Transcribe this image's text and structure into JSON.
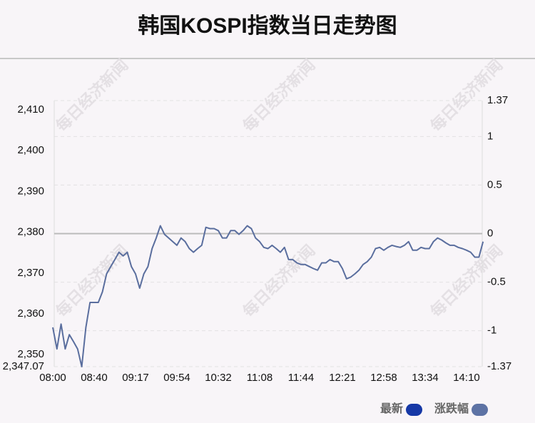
{
  "chart_data": {
    "type": "line",
    "title": "韩国KOSPI指数当日走势图",
    "watermark": "每日经济新闻",
    "categories": [
      "08:00",
      null,
      null,
      null,
      null,
      null,
      null,
      null,
      null,
      null,
      "08:40",
      null,
      null,
      null,
      null,
      null,
      null,
      null,
      null,
      null,
      "09:17",
      null,
      null,
      null,
      null,
      null,
      null,
      null,
      null,
      null,
      "09:54",
      null,
      null,
      null,
      null,
      null,
      null,
      null,
      null,
      null,
      "10:32",
      null,
      null,
      null,
      null,
      null,
      null,
      null,
      null,
      null,
      "11:08",
      null,
      null,
      null,
      null,
      null,
      null,
      null,
      null,
      null,
      "11:44",
      null,
      null,
      null,
      null,
      null,
      null,
      null,
      null,
      null,
      "12:21",
      null,
      null,
      null,
      null,
      null,
      null,
      null,
      null,
      null,
      "12:58",
      null,
      null,
      null,
      null,
      null,
      null,
      null,
      null,
      null,
      "13:34",
      null,
      null,
      null,
      null,
      null,
      null,
      null,
      null,
      null,
      "14:10",
      null,
      null,
      null,
      null
    ],
    "values": [
      2356.7,
      2351.4,
      2357.5,
      2351.4,
      2354.9,
      2353.2,
      2351.4,
      2347.07,
      2356.7,
      2362.8,
      2362.8,
      2362.8,
      2365.4,
      2369.8,
      2371.6,
      2373.3,
      2375.1,
      2374.2,
      2375.1,
      2371.6,
      2369.8,
      2366.3,
      2369.8,
      2371.6,
      2376.0,
      2378.6,
      2381.6,
      2379.5,
      2378.6,
      2377.7,
      2376.8,
      2378.6,
      2377.7,
      2376.0,
      2375.1,
      2376.0,
      2376.8,
      2381.2,
      2380.9,
      2380.9,
      2380.4,
      2378.6,
      2378.6,
      2380.4,
      2380.4,
      2379.5,
      2380.4,
      2381.6,
      2380.9,
      2378.6,
      2377.7,
      2376.3,
      2376.0,
      2376.8,
      2376.0,
      2375.1,
      2376.3,
      2373.3,
      2373.3,
      2372.5,
      2372.1,
      2372.1,
      2371.6,
      2371.1,
      2370.7,
      2372.5,
      2372.5,
      2373.3,
      2372.8,
      2372.8,
      2371.1,
      2368.6,
      2369.0,
      2369.8,
      2370.7,
      2372.1,
      2372.8,
      2373.9,
      2376.0,
      2376.3,
      2375.6,
      2376.3,
      2376.8,
      2376.5,
      2376.3,
      2376.8,
      2377.7,
      2375.6,
      2375.6,
      2376.3,
      2376.0,
      2376.0,
      2377.7,
      2378.6,
      2378.1,
      2377.4,
      2376.8,
      2376.8,
      2376.3,
      2376.0,
      2375.6,
      2375.1,
      2373.9,
      2373.9,
      2377.7
    ],
    "color": "#5a6e9e",
    "ylim": [
      2347.07,
      2412.27
    ],
    "yticks": [
      {
        "value": 2347.07,
        "label": "2,347.07"
      },
      {
        "value": 2350,
        "label": "2,350"
      },
      {
        "value": 2360,
        "label": "2,360"
      },
      {
        "value": 2370,
        "label": "2,370"
      },
      {
        "value": 2380,
        "label": "2,380"
      },
      {
        "value": 2390,
        "label": "2,390"
      },
      {
        "value": 2400,
        "label": "2,400"
      },
      {
        "value": 2410,
        "label": "2,410"
      }
    ],
    "y2lim": [
      -1.37,
      1.37
    ],
    "y2ticks": [
      -1.37,
      -1,
      -0.5,
      0,
      0.5,
      1,
      1.37
    ],
    "grid": true,
    "legend": [
      {
        "name": "最新",
        "color": "#1638a6"
      },
      {
        "name": "涨跌幅",
        "color": "#5d72a4"
      }
    ]
  }
}
